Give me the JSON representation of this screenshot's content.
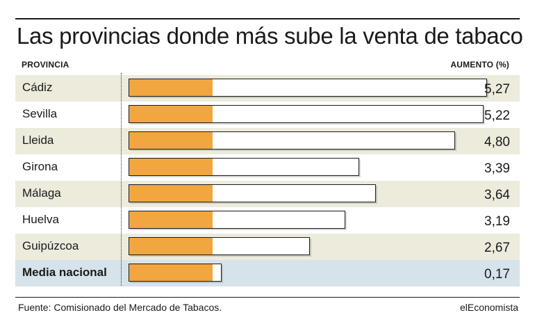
{
  "header": {
    "title": "Las provincias donde más sube la venta de tabaco",
    "col_left": "PROVINCIA",
    "col_right": "AUMENTO (%)"
  },
  "footer": {
    "source": "Fuente: Comisionado del Mercado de Tabacos.",
    "brand": "elEconomista"
  },
  "colors": {
    "bar_fill": "#f2a640",
    "row_shaded": "#ecebdc",
    "row_national": "#d6e3ea"
  },
  "chart_data": {
    "type": "bar",
    "orientation": "horizontal",
    "title": "Las provincias donde más sube la venta de tabaco",
    "xlabel": "AUMENTO (%)",
    "ylabel": "PROVINCIA",
    "categories": [
      "Cádiz",
      "Sevilla",
      "Lleida",
      "Girona",
      "Málaga",
      "Huelva",
      "Guipúzcoa",
      "Media nacional"
    ],
    "values": [
      5.27,
      5.22,
      4.8,
      3.39,
      3.64,
      3.19,
      2.67,
      0.17
    ],
    "value_labels": [
      "5,27",
      "5,22",
      "4,80",
      "3,39",
      "3,64",
      "3,19",
      "2,67",
      "0,17"
    ],
    "xlim": [
      0,
      5.27
    ],
    "grid": false,
    "legend": "none"
  }
}
